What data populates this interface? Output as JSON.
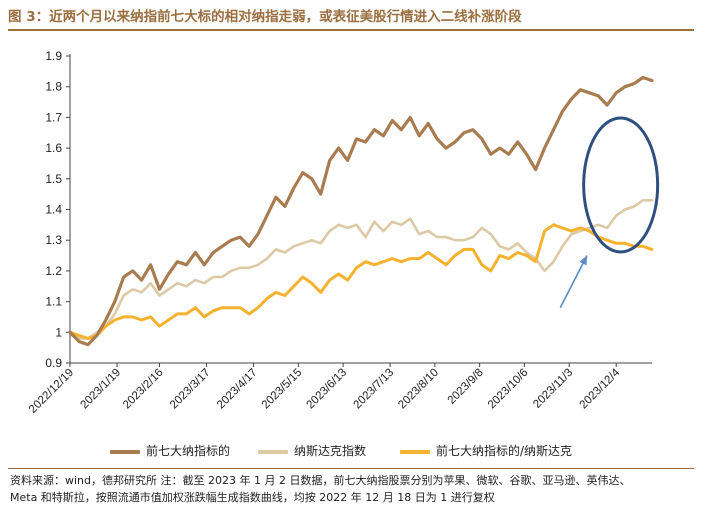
{
  "chart_data": {
    "type": "line",
    "title": "图 3：近两个月以来纳指前七大标的相对纳指走弱，或表征美股行情进入二线补涨阶段",
    "xlabel": "",
    "ylabel": "",
    "ylim": [
      0.9,
      1.9
    ],
    "yticks": [
      "0.9",
      "1",
      "1.1",
      "1.2",
      "1.3",
      "1.4",
      "1.5",
      "1.6",
      "1.7",
      "1.8",
      "1.9"
    ],
    "xlim": [
      0,
      260
    ],
    "xticks": [
      {
        "label": "2022/12/19",
        "x": 0
      },
      {
        "label": "2023/1/19",
        "x": 21
      },
      {
        "label": "2023/2/16",
        "x": 40
      },
      {
        "label": "2023/3/17",
        "x": 61
      },
      {
        "label": "2023/4/17",
        "x": 82
      },
      {
        "label": "2023/5/15",
        "x": 102
      },
      {
        "label": "2023/6/13",
        "x": 122
      },
      {
        "label": "2023/7/13",
        "x": 143
      },
      {
        "label": "2023/8/10",
        "x": 163
      },
      {
        "label": "2023/9/8",
        "x": 183
      },
      {
        "label": "2023/10/6",
        "x": 203
      },
      {
        "label": "2023/11/3",
        "x": 223
      },
      {
        "label": "2023/12/4",
        "x": 244
      }
    ],
    "x": [
      0,
      4,
      8,
      12,
      16,
      20,
      24,
      28,
      32,
      36,
      40,
      44,
      48,
      52,
      56,
      60,
      64,
      68,
      72,
      76,
      80,
      84,
      88,
      92,
      96,
      100,
      104,
      108,
      112,
      116,
      120,
      124,
      128,
      132,
      136,
      140,
      144,
      148,
      152,
      156,
      160,
      164,
      168,
      172,
      176,
      180,
      184,
      188,
      192,
      196,
      200,
      204,
      208,
      212,
      216,
      220,
      224,
      228,
      232,
      236,
      240,
      244,
      248,
      252,
      256,
      260
    ],
    "series": [
      {
        "name": "前七大纳指标的",
        "color": "#a97c50",
        "values": [
          1.0,
          0.97,
          0.96,
          0.99,
          1.04,
          1.1,
          1.18,
          1.2,
          1.17,
          1.22,
          1.14,
          1.19,
          1.23,
          1.22,
          1.26,
          1.22,
          1.26,
          1.28,
          1.3,
          1.31,
          1.28,
          1.32,
          1.38,
          1.44,
          1.41,
          1.47,
          1.52,
          1.5,
          1.45,
          1.56,
          1.6,
          1.56,
          1.63,
          1.62,
          1.66,
          1.64,
          1.69,
          1.66,
          1.7,
          1.64,
          1.68,
          1.63,
          1.6,
          1.62,
          1.65,
          1.66,
          1.63,
          1.58,
          1.6,
          1.58,
          1.62,
          1.58,
          1.53,
          1.6,
          1.66,
          1.72,
          1.76,
          1.79,
          1.78,
          1.77,
          1.74,
          1.78,
          1.8,
          1.81,
          1.83,
          1.82
        ]
      },
      {
        "name": "纳斯达克指数",
        "color": "#dcc9a6",
        "values": [
          1.0,
          0.98,
          0.98,
          1.0,
          1.02,
          1.06,
          1.12,
          1.14,
          1.13,
          1.16,
          1.12,
          1.14,
          1.16,
          1.15,
          1.17,
          1.16,
          1.18,
          1.18,
          1.2,
          1.21,
          1.21,
          1.22,
          1.24,
          1.27,
          1.26,
          1.28,
          1.29,
          1.3,
          1.29,
          1.33,
          1.35,
          1.34,
          1.35,
          1.31,
          1.36,
          1.33,
          1.36,
          1.35,
          1.37,
          1.32,
          1.33,
          1.31,
          1.31,
          1.3,
          1.3,
          1.31,
          1.34,
          1.32,
          1.28,
          1.27,
          1.29,
          1.26,
          1.24,
          1.2,
          1.23,
          1.28,
          1.32,
          1.33,
          1.34,
          1.35,
          1.34,
          1.38,
          1.4,
          1.41,
          1.43,
          1.43
        ]
      },
      {
        "name": "前七大纳指标的/纳斯达克",
        "color": "#f5b22f",
        "values": [
          1.0,
          0.99,
          0.98,
          0.99,
          1.02,
          1.04,
          1.05,
          1.05,
          1.04,
          1.05,
          1.02,
          1.04,
          1.06,
          1.06,
          1.08,
          1.05,
          1.07,
          1.08,
          1.08,
          1.08,
          1.06,
          1.08,
          1.11,
          1.13,
          1.12,
          1.15,
          1.18,
          1.16,
          1.13,
          1.17,
          1.19,
          1.17,
          1.21,
          1.23,
          1.22,
          1.23,
          1.24,
          1.23,
          1.24,
          1.24,
          1.26,
          1.24,
          1.22,
          1.25,
          1.27,
          1.27,
          1.22,
          1.2,
          1.25,
          1.24,
          1.26,
          1.25,
          1.23,
          1.33,
          1.35,
          1.34,
          1.33,
          1.34,
          1.33,
          1.31,
          1.3,
          1.29,
          1.29,
          1.28,
          1.28,
          1.27
        ]
      }
    ],
    "legend": [
      "前七大纳指标的",
      "纳斯达克指数",
      "前七大纳指标的/纳斯达克"
    ],
    "legend_position": "bottom",
    "annotations": [
      {
        "type": "ellipse",
        "color": "#2f4f7f",
        "description": "highlights recent period"
      },
      {
        "type": "arrow",
        "color": "#5b8ac4"
      }
    ],
    "grid": false
  },
  "legend_labels": {
    "a": "前七大纳指标的",
    "b": "纳斯达克指数",
    "c": "前七大纳指标的/纳斯达克"
  },
  "header": {
    "title": "图 3：近两个月以来纳指前七大标的相对纳指走弱，或表征美股行情进入二线补涨阶段"
  },
  "footer": {
    "source_line1": "资料来源：wind，德邦研究所  注：截至 2023 年 1 月 2 日数据，前七大纳指股票分别为苹果、微软、谷歌、亚马逊、英伟达、",
    "source_line2": "Meta 和特斯拉，按照流通市值加权涨跌幅生成指数曲线，均按 2022 年 12 月 18 日为 1 进行复权"
  }
}
